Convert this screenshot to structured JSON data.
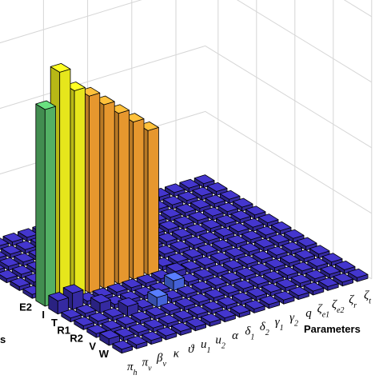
{
  "chart_data": {
    "type": "bar3d",
    "title": "",
    "xlabel": "Parameters",
    "ylabel_partial": "s",
    "x_categories": [
      "π_h",
      "π_v",
      "β_v",
      "κ",
      "ϑ",
      "u_1",
      "u_2",
      "α",
      "δ_1",
      "δ_2",
      "γ_1",
      "γ_2",
      "q",
      "ζ_e1",
      "ζ_e2",
      "ζ_r",
      "ζ_t"
    ],
    "y_categories": [
      "E2",
      "I",
      "T",
      "R1",
      "R2",
      "V",
      "W"
    ],
    "zlim": [
      0,
      1
    ],
    "grid": true,
    "colors": {
      "base": "#3b2fb3",
      "green": "#5cc46f",
      "yellow": "#ffff1f",
      "orange": "#ffa833",
      "light_blue": "#4d6df0"
    },
    "highlight_bars": [
      {
        "param": "π_h",
        "state": "E2",
        "value": 0.6,
        "color": "green"
      },
      {
        "param": "π_v",
        "state": "E2",
        "value": 0.7,
        "color": "yellow"
      },
      {
        "param": "β_v",
        "state": "E2",
        "value": 0.63,
        "color": "yellow"
      },
      {
        "param": "κ",
        "state": "E2",
        "value": 0.6,
        "color": "orange"
      },
      {
        "param": "ϑ",
        "state": "E2",
        "value": 0.56,
        "color": "orange"
      },
      {
        "param": "u_1",
        "state": "E2",
        "value": 0.52,
        "color": "orange"
      },
      {
        "param": "u_2",
        "state": "E2",
        "value": 0.48,
        "color": "orange"
      },
      {
        "param": "α",
        "state": "E2",
        "value": 0.44,
        "color": "orange"
      }
    ],
    "small_bars": [
      {
        "param": "π_h",
        "state": "I",
        "value": 0.04,
        "color": "base"
      },
      {
        "param": "π_v",
        "state": "I",
        "value": 0.05,
        "color": "base"
      },
      {
        "param": "β_v",
        "state": "T",
        "value": 0.03,
        "color": "base"
      },
      {
        "param": "κ",
        "state": "R1",
        "value": 0.03,
        "color": "base"
      },
      {
        "param": "u_1",
        "state": "R1",
        "value": 0.03,
        "color": "light_blue"
      },
      {
        "param": "α",
        "state": "T",
        "value": 0.03,
        "color": "light_blue"
      },
      {
        "param": "π_h",
        "state": "V",
        "value": 0.02,
        "color": "base"
      },
      {
        "param": "δ_1",
        "state": "I",
        "value": 0.02,
        "color": "base"
      }
    ]
  }
}
